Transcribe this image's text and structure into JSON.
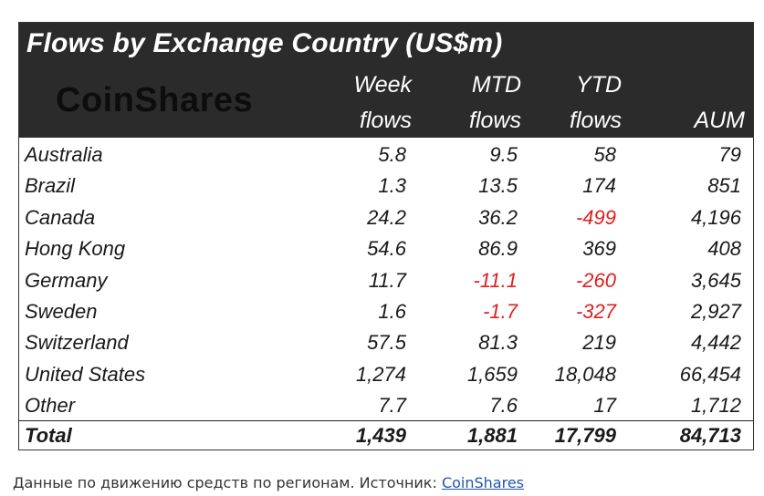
{
  "table": {
    "title": "Flows by Exchange Country (US$m)",
    "logo_text": "CoinShares",
    "columns": {
      "week": {
        "line1": "Week",
        "line2": "flows"
      },
      "mtd": {
        "line1": "MTD",
        "line2": "flows"
      },
      "ytd": {
        "line1": "YTD",
        "line2": "flows"
      },
      "aum": {
        "line1": "",
        "line2": "AUM"
      }
    },
    "rows": [
      {
        "name": "Australia",
        "week": "5.8",
        "mtd": "9.5",
        "ytd": "58",
        "aum": "79"
      },
      {
        "name": "Brazil",
        "week": "1.3",
        "mtd": "13.5",
        "ytd": "174",
        "aum": "851"
      },
      {
        "name": "Canada",
        "week": "24.2",
        "mtd": "36.2",
        "ytd": "-499",
        "aum": "4,196"
      },
      {
        "name": "Hong Kong",
        "week": "54.6",
        "mtd": "86.9",
        "ytd": "369",
        "aum": "408"
      },
      {
        "name": "Germany",
        "week": "11.7",
        "mtd": "-11.1",
        "ytd": "-260",
        "aum": "3,645"
      },
      {
        "name": "Sweden",
        "week": "1.6",
        "mtd": "-1.7",
        "ytd": "-327",
        "aum": "2,927"
      },
      {
        "name": "Switzerland",
        "week": "57.5",
        "mtd": "81.3",
        "ytd": "219",
        "aum": "4,442"
      },
      {
        "name": "United States",
        "week": "1,274",
        "mtd": "1,659",
        "ytd": "18,048",
        "aum": "66,454"
      },
      {
        "name": "Other",
        "week": "7.7",
        "mtd": "7.6",
        "ytd": "17",
        "aum": "1,712"
      }
    ],
    "total": {
      "name": "Total",
      "week": "1,439",
      "mtd": "1,881",
      "ytd": "17,799",
      "aum": "84,713"
    },
    "negative_color": "#e02020",
    "header_bg": "#2b2b2b"
  },
  "caption": {
    "text": "Данные по движению средств по регионам. Источник: ",
    "link_text": "CoinShares"
  }
}
